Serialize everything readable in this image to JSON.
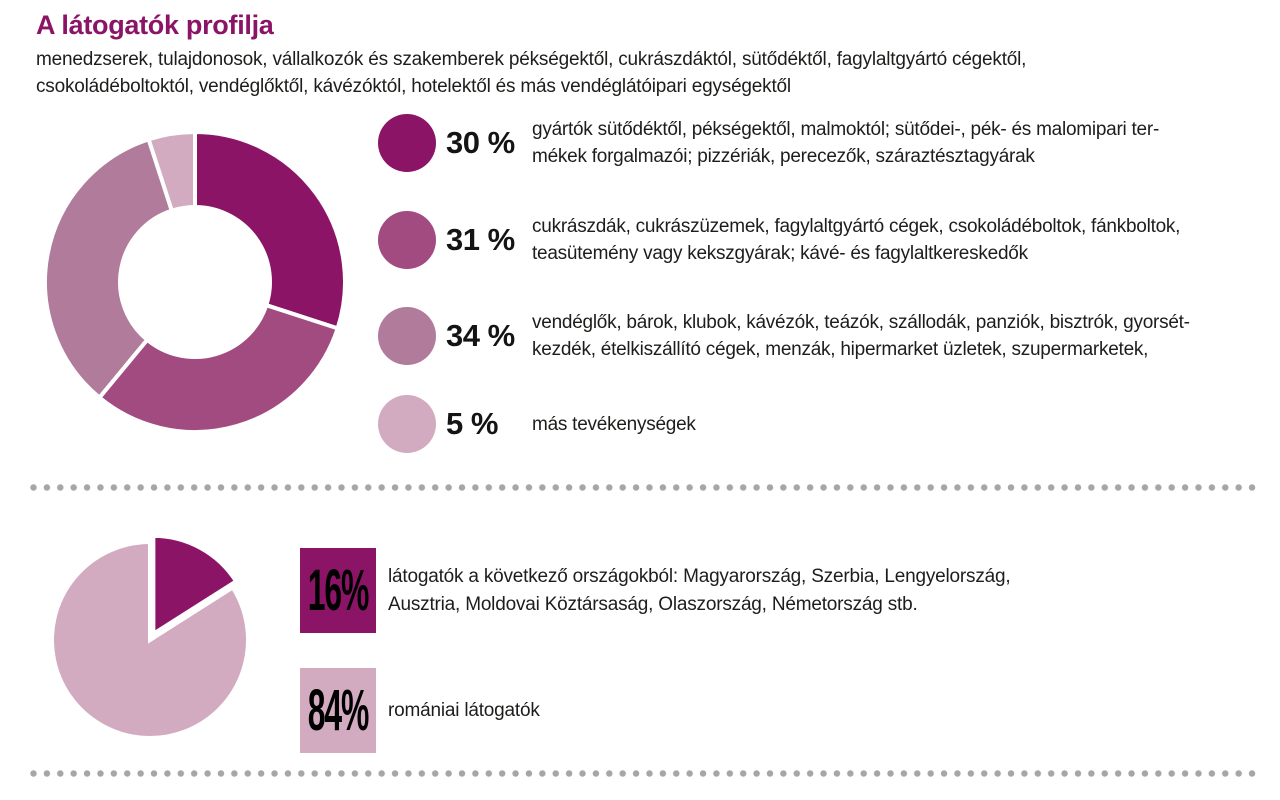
{
  "page": {
    "title": "A látogatók profilja",
    "subtitle_lines": [
      "menedzserek, tulajdonosok, vállalkozók és szakemberek pékségektől, cukrászdáktól, sütődéktől, fagylaltgyártó cégektől,",
      "csokoládéboltoktól, vendéglőktől, kávézóktól, hotelektől és más vendéglátóipari egységektől"
    ]
  },
  "colors": {
    "title": "#8B1467",
    "text": "#1D1D1B",
    "separator_dots": "#A6A6A6",
    "dark_magenta": "#8B1467",
    "medium_plum": "#A14B80",
    "mauve": "#B17B9B",
    "light_pink": "#D2ABC1"
  },
  "chart_data": [
    {
      "type": "donut",
      "title": "A látogatók profilja",
      "values": [
        30,
        31,
        34,
        5
      ],
      "labels": [
        "gyártók sütődéktől, pékségektől, malmoktól; sütődei-, pék- és malomipari termékek forgalmazói; pizzériák, perecezők, száraztésztagyárak",
        "cukrászdák, cukrászüzemek, fagylaltgyártó cégek, csokoládéboltok, fánkboltok, teasütemény vagy kekszgyárak; kávé- és fagylaltkereskedők",
        "vendéglők, bárok, klubok, kávézók, teázók, szállodák, panziók, bisztrók, gyorsétkezdék, ételkiszállító cégek, menzák, hipermarket üzletek, szupermarketek,",
        "más tevékenységek"
      ],
      "colors": [
        "#8B1467",
        "#A14B80",
        "#B17B9B",
        "#D2ABC1"
      ],
      "start_angle_deg": 0,
      "direction": "clockwise",
      "inner_radius_ratio": 0.5,
      "legend_position": "right"
    },
    {
      "type": "pie",
      "values": [
        16,
        84
      ],
      "labels": [
        "látogatók a következő országokból: Magyarország, Szerbia, Lengyelország, Ausztria, Moldovai Köztársaság, Olaszország, Németország stb.",
        "romániai látogatók"
      ],
      "colors": [
        "#8B1467",
        "#D2ABC1"
      ],
      "start_angle_deg": 0,
      "direction": "clockwise",
      "exploded_index": 0,
      "legend_position": "right"
    }
  ],
  "legend_top": {
    "items": [
      {
        "pct": "30 %",
        "lines": [
          "gyártók sütődéktől, pékségektől, malmoktól; sütődei-, pék- és malomipari ter-",
          "mékek forgalmazói; pizzériák, perecezők, száraztésztagyárak"
        ]
      },
      {
        "pct": "31 %",
        "lines": [
          "cukrászdák, cukrászüzemek, fagylaltgyártó cégek, csokoládéboltok, fánkboltok,",
          "teasütemény vagy kekszgyárak; kávé- és fagylaltkereskedők"
        ]
      },
      {
        "pct": "34 %",
        "lines": [
          "vendéglők, bárok, klubok, kávézók, teázók, szállodák, panziók, bisztrók, gyorsét-",
          "kezdék, ételkiszállító cégek, menzák, hipermarket üzletek, szupermarketek,"
        ]
      },
      {
        "pct": "5 %",
        "lines": [
          "más tevékenységek"
        ]
      }
    ]
  },
  "legend_bottom": {
    "items": [
      {
        "pct": "16%",
        "lines": [
          "látogatók a következő országokból: Magyarország, Szerbia, Lengyelország,",
          "Ausztria, Moldovai Köztársaság, Olaszország, Németország stb."
        ]
      },
      {
        "pct": "84%",
        "lines": [
          "romániai látogatók"
        ]
      }
    ]
  }
}
